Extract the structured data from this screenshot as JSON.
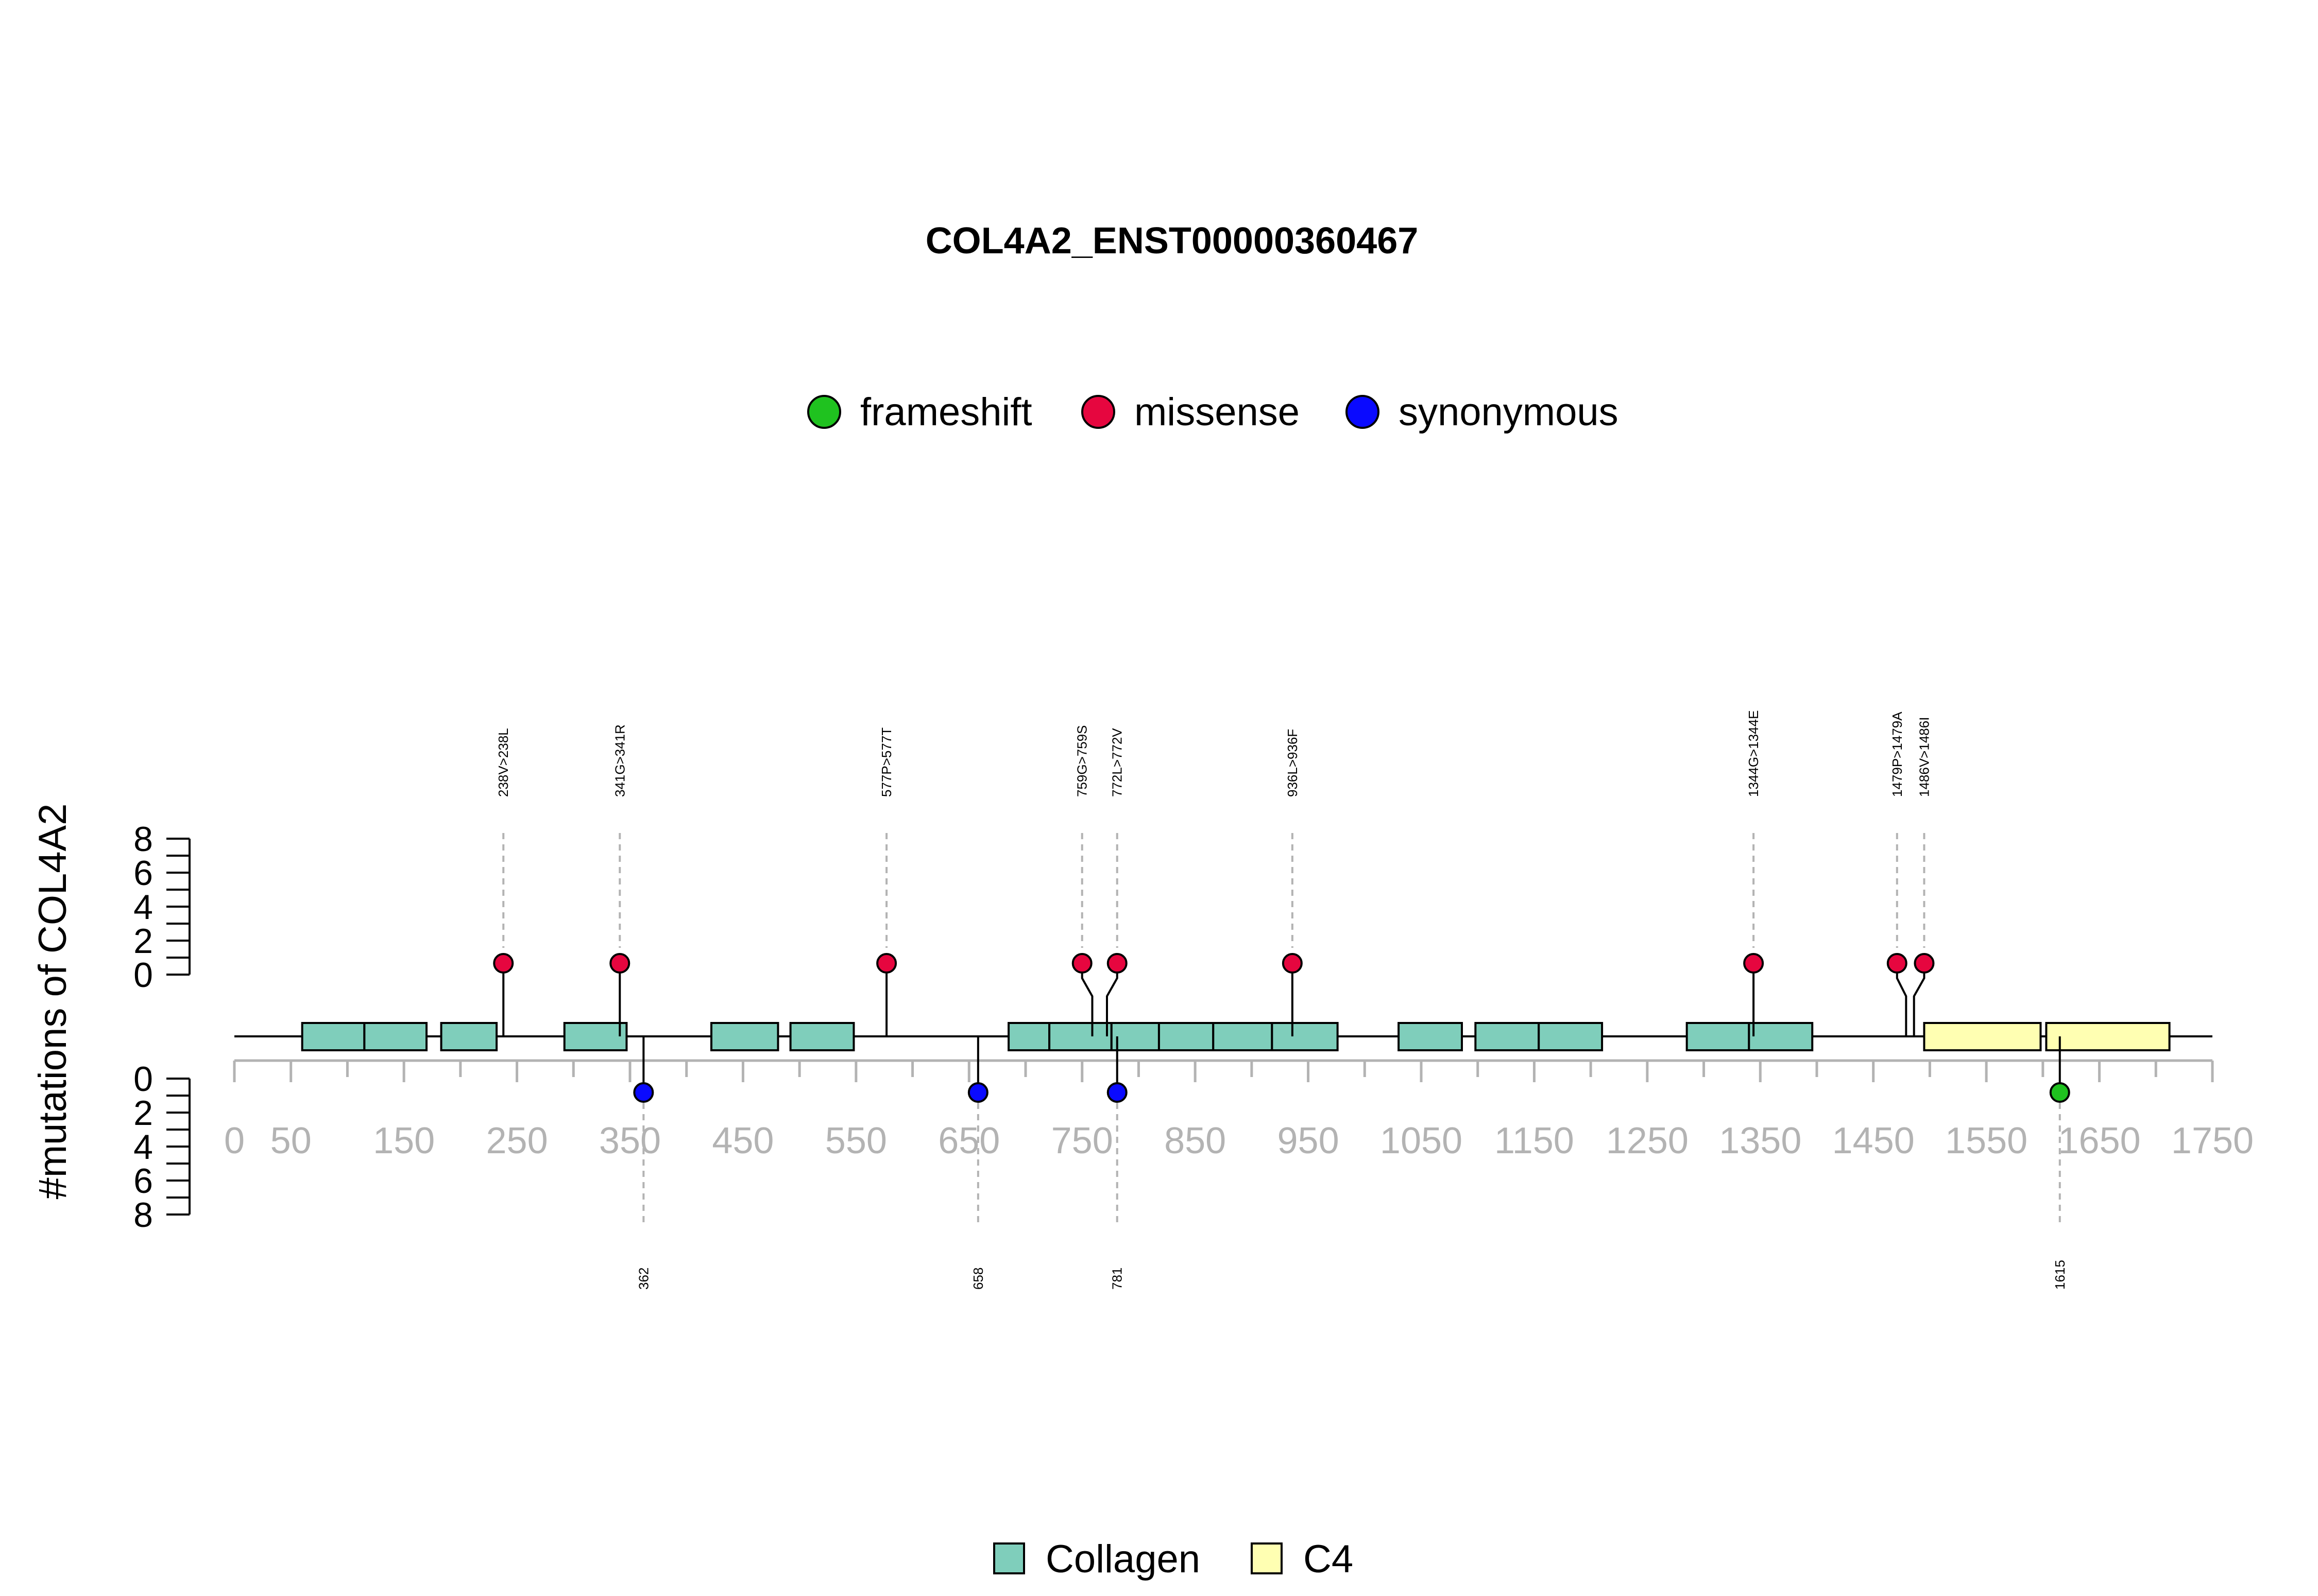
{
  "chart_data": {
    "type": "lollipop",
    "title": "COL4A2_ENST00000360467",
    "ylabel": "#mutations of COL4A2",
    "protein_length": 1712,
    "xlim": [
      0,
      1750
    ],
    "x_tick_labels": [
      "0",
      "50",
      "150",
      "250",
      "350",
      "450",
      "550",
      "650",
      "750",
      "850",
      "950",
      "1050",
      "1150",
      "1250",
      "1350",
      "1450",
      "1550",
      "1650",
      "1750"
    ],
    "ylim": [
      0,
      8
    ],
    "y_tick_labels": [
      "0",
      "2",
      "4",
      "6",
      "8"
    ],
    "legend_variants": [
      {
        "name": "frameshift",
        "color": "#1fc21f"
      },
      {
        "name": "missense",
        "color": "#e6063f"
      },
      {
        "name": "synonymous",
        "color": "#0a0aff"
      }
    ],
    "legend_domains": [
      {
        "name": "Collagen",
        "color": "#7fcebb"
      },
      {
        "name": "C4",
        "color": "#ffffb2"
      }
    ],
    "domains": [
      {
        "name": "Collagen",
        "start": 60,
        "end": 115
      },
      {
        "name": "Collagen",
        "start": 115,
        "end": 170
      },
      {
        "name": "Collagen",
        "start": 183,
        "end": 232
      },
      {
        "name": "Collagen",
        "start": 292,
        "end": 347
      },
      {
        "name": "Collagen",
        "start": 422,
        "end": 481
      },
      {
        "name": "Collagen",
        "start": 492,
        "end": 548
      },
      {
        "name": "Collagen",
        "start": 685,
        "end": 721
      },
      {
        "name": "Collagen",
        "start": 721,
        "end": 776
      },
      {
        "name": "Collagen",
        "start": 776,
        "end": 818
      },
      {
        "name": "Collagen",
        "start": 818,
        "end": 866
      },
      {
        "name": "Collagen",
        "start": 866,
        "end": 918
      },
      {
        "name": "Collagen",
        "start": 918,
        "end": 976
      },
      {
        "name": "Collagen",
        "start": 1030,
        "end": 1086
      },
      {
        "name": "Collagen",
        "start": 1098,
        "end": 1154
      },
      {
        "name": "Collagen",
        "start": 1154,
        "end": 1210
      },
      {
        "name": "Collagen",
        "start": 1285,
        "end": 1340
      },
      {
        "name": "Collagen",
        "start": 1340,
        "end": 1396
      },
      {
        "name": "C4",
        "start": 1495,
        "end": 1598
      },
      {
        "name": "C4",
        "start": 1603,
        "end": 1712
      }
    ],
    "mutations_above": [
      {
        "label": "238V>238L",
        "position": 238,
        "count": 1,
        "type": "missense",
        "x_display": 238
      },
      {
        "label": "341G>341R",
        "position": 341,
        "count": 1,
        "type": "missense",
        "x_display": 341
      },
      {
        "label": "577P>577T",
        "position": 577,
        "count": 1,
        "type": "missense",
        "x_display": 577
      },
      {
        "label": "759G>759S",
        "position": 759,
        "count": 1,
        "type": "missense",
        "x_display": 750
      },
      {
        "label": "772L>772V",
        "position": 772,
        "count": 1,
        "type": "missense",
        "x_display": 781
      },
      {
        "label": "936L>936F",
        "position": 936,
        "count": 1,
        "type": "missense",
        "x_display": 936
      },
      {
        "label": "1344G>1344E",
        "position": 1344,
        "count": 1,
        "type": "missense",
        "x_display": 1344
      },
      {
        "label": "1479P>1479A",
        "position": 1479,
        "count": 1,
        "type": "missense",
        "x_display": 1471
      },
      {
        "label": "1486V>1486I",
        "position": 1486,
        "count": 1,
        "type": "missense",
        "x_display": 1495
      }
    ],
    "mutations_below": [
      {
        "label": "362",
        "position": 362,
        "count": 1,
        "type": "synonymous"
      },
      {
        "label": "658",
        "position": 658,
        "count": 1,
        "type": "synonymous"
      },
      {
        "label": "781",
        "position": 781,
        "count": 1,
        "type": "synonymous"
      },
      {
        "label": "1615",
        "position": 1615,
        "count": 1,
        "type": "frameshift"
      }
    ]
  }
}
